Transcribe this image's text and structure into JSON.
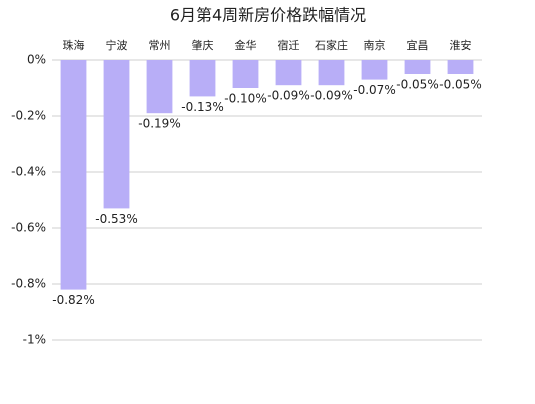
{
  "chart_data": {
    "type": "bar",
    "title": "6月第4周新房价格跌幅情况",
    "categories": [
      "珠海",
      "宁波",
      "常州",
      "肇庆",
      "金华",
      "宿迁",
      "石家庄",
      "南京",
      "宜昌",
      "淮安"
    ],
    "values": [
      -0.82,
      -0.53,
      -0.19,
      -0.13,
      -0.1,
      -0.09,
      -0.09,
      -0.07,
      -0.05,
      -0.05
    ],
    "value_labels": [
      "-0.82%",
      "-0.53%",
      "-0.19%",
      "-0.13%",
      "-0.10%",
      "-0.09%",
      "-0.09%",
      "-0.07%",
      "-0.05%",
      "-0.05%"
    ],
    "color": "#b8aef7",
    "ylim": [
      -1,
      0
    ],
    "yticks": [
      {
        "value": 0,
        "label": "0%"
      },
      {
        "value": -0.2,
        "label": "-0.2%"
      },
      {
        "value": -0.4,
        "label": "-0.4%"
      },
      {
        "value": -0.6,
        "label": "-0.6%"
      },
      {
        "value": -0.8,
        "label": "-0.8%"
      },
      {
        "value": -1,
        "label": "-1%"
      }
    ],
    "grid": true
  }
}
